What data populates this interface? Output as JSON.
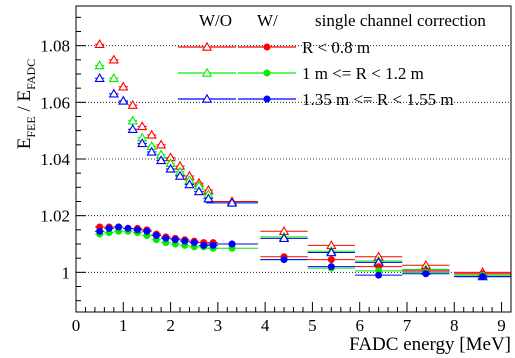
{
  "chart_data": {
    "type": "scatter",
    "xlabel": "FADC energy [MeV]",
    "ylabel_main": "E",
    "ylabel_sub1": "FEE",
    "ylabel_sep": " / E",
    "ylabel_sub2": "FADC",
    "xlim": [
      0,
      9.2
    ],
    "ylim": [
      0.986,
      1.094
    ],
    "xticks": [
      "0",
      "1",
      "2",
      "3",
      "4",
      "5",
      "6",
      "7",
      "8",
      "9"
    ],
    "yticks": [
      "1",
      "1.02",
      "1.04",
      "1.06",
      "1.08"
    ],
    "grid": "dotted horizontal",
    "legend": {
      "placement": "top-right",
      "header_wo": "W/O",
      "header_w": "W/",
      "header_note": "single channel correction",
      "rows": [
        {
          "label": "R < 0.8 m",
          "color": "#ff0000"
        },
        {
          "label": "1 m <= R < 1.2 m",
          "color": "#00ee00"
        },
        {
          "label": "1.35 m <= R < 1.55 m",
          "color": "#0000ff"
        }
      ]
    },
    "series": [
      {
        "correction": "W/O",
        "color": "#ff0000",
        "marker": "open-triangle",
        "points": [
          [
            0.5,
            1.0805,
            0.1,
            0.0005
          ],
          [
            0.8,
            1.075,
            0.1,
            0.0005
          ],
          [
            1.0,
            1.0655,
            0.1,
            0.0005
          ],
          [
            1.2,
            1.059,
            0.1,
            0.0005
          ],
          [
            1.4,
            1.0515,
            0.1,
            0.0005
          ],
          [
            1.6,
            1.0485,
            0.1,
            0.0005
          ],
          [
            1.8,
            1.045,
            0.1,
            0.0005
          ],
          [
            2.0,
            1.0405,
            0.1,
            0.0005
          ],
          [
            2.2,
            1.0375,
            0.1,
            0.0005
          ],
          [
            2.4,
            1.034,
            0.1,
            0.0005
          ],
          [
            2.6,
            1.0315,
            0.1,
            0.0005
          ],
          [
            2.8,
            1.029,
            0.1,
            0.0005
          ],
          [
            3.3,
            1.025,
            0.55,
            0.0008
          ],
          [
            4.4,
            1.0145,
            0.5,
            0.001
          ],
          [
            5.4,
            1.0095,
            0.5,
            0.001
          ],
          [
            6.4,
            1.0055,
            0.5,
            0.001
          ],
          [
            7.4,
            1.0025,
            0.5,
            0.001
          ],
          [
            8.6,
            1.0,
            0.6,
            0.0008
          ]
        ]
      },
      {
        "correction": "W/O",
        "color": "#00ee00",
        "marker": "open-triangle",
        "points": [
          [
            0.5,
            1.073,
            0.1,
            0.0005
          ],
          [
            0.8,
            1.0685,
            0.1,
            0.0005
          ],
          [
            1.0,
            1.0605,
            0.1,
            0.0005
          ],
          [
            1.2,
            1.0535,
            0.1,
            0.0005
          ],
          [
            1.4,
            1.0475,
            0.1,
            0.0005
          ],
          [
            1.6,
            1.0445,
            0.1,
            0.0005
          ],
          [
            1.8,
            1.0415,
            0.1,
            0.0005
          ],
          [
            2.0,
            1.0385,
            0.1,
            0.0005
          ],
          [
            2.2,
            1.0355,
            0.1,
            0.0005
          ],
          [
            2.4,
            1.0325,
            0.1,
            0.0005
          ],
          [
            2.6,
            1.0305,
            0.1,
            0.0005
          ],
          [
            2.8,
            1.0275,
            0.1,
            0.0005
          ],
          [
            3.3,
            1.0245,
            0.55,
            0.0008
          ],
          [
            4.4,
            1.0125,
            0.5,
            0.001
          ],
          [
            5.4,
            1.0075,
            0.5,
            0.001
          ],
          [
            6.4,
            1.004,
            0.5,
            0.001
          ],
          [
            7.4,
            1.001,
            0.5,
            0.001
          ],
          [
            8.6,
            0.999,
            0.6,
            0.0008
          ]
        ]
      },
      {
        "correction": "W/O",
        "color": "#0000ff",
        "marker": "open-triangle",
        "points": [
          [
            0.5,
            1.0685,
            0.1,
            0.0005
          ],
          [
            0.8,
            1.063,
            0.1,
            0.0005
          ],
          [
            1.0,
            1.0605,
            0.1,
            0.0005
          ],
          [
            1.2,
            1.0505,
            0.1,
            0.0005
          ],
          [
            1.4,
            1.0455,
            0.1,
            0.0005
          ],
          [
            1.6,
            1.0425,
            0.1,
            0.0005
          ],
          [
            1.8,
            1.0395,
            0.1,
            0.0005
          ],
          [
            2.0,
            1.0365,
            0.1,
            0.0005
          ],
          [
            2.2,
            1.034,
            0.1,
            0.0005
          ],
          [
            2.4,
            1.031,
            0.1,
            0.0005
          ],
          [
            2.6,
            1.0285,
            0.1,
            0.0005
          ],
          [
            2.8,
            1.026,
            0.1,
            0.0005
          ],
          [
            3.3,
            1.0245,
            0.55,
            0.0008
          ],
          [
            4.4,
            1.012,
            0.5,
            0.001
          ],
          [
            5.4,
            1.007,
            0.5,
            0.001
          ],
          [
            6.4,
            1.0035,
            0.5,
            0.001
          ],
          [
            7.4,
            1.0005,
            0.5,
            0.001
          ],
          [
            8.6,
            0.9985,
            0.6,
            0.0008
          ]
        ]
      },
      {
        "correction": "W/",
        "color": "#ff0000",
        "marker": "filled-circle",
        "points": [
          [
            0.5,
            1.016,
            0.1,
            0.0004
          ],
          [
            0.7,
            1.016,
            0.1,
            0.0004
          ],
          [
            0.9,
            1.016,
            0.1,
            0.0004
          ],
          [
            1.1,
            1.0155,
            0.1,
            0.0004
          ],
          [
            1.3,
            1.0155,
            0.1,
            0.0004
          ],
          [
            1.5,
            1.015,
            0.1,
            0.0004
          ],
          [
            1.7,
            1.0135,
            0.1,
            0.0004
          ],
          [
            1.9,
            1.0125,
            0.1,
            0.0004
          ],
          [
            2.1,
            1.012,
            0.1,
            0.0004
          ],
          [
            2.3,
            1.0115,
            0.1,
            0.0004
          ],
          [
            2.5,
            1.011,
            0.1,
            0.0004
          ],
          [
            2.7,
            1.0105,
            0.1,
            0.0004
          ],
          [
            2.9,
            1.0105,
            0.1,
            0.0004
          ],
          [
            3.3,
            1.01,
            0.55,
            0.0006
          ],
          [
            4.4,
            1.0055,
            0.5,
            0.0008
          ],
          [
            5.4,
            1.0045,
            0.5,
            0.0008
          ],
          [
            6.4,
            1.002,
            0.5,
            0.0008
          ],
          [
            7.4,
            1.0005,
            0.5,
            0.0008
          ],
          [
            8.6,
            0.9995,
            0.6,
            0.0006
          ]
        ]
      },
      {
        "correction": "W/",
        "color": "#00ee00",
        "marker": "filled-circle",
        "points": [
          [
            0.5,
            1.0135,
            0.1,
            0.0004
          ],
          [
            0.7,
            1.014,
            0.1,
            0.0004
          ],
          [
            0.9,
            1.0145,
            0.1,
            0.0004
          ],
          [
            1.1,
            1.0145,
            0.1,
            0.0004
          ],
          [
            1.3,
            1.014,
            0.1,
            0.0004
          ],
          [
            1.5,
            1.013,
            0.1,
            0.0004
          ],
          [
            1.7,
            1.0115,
            0.1,
            0.0004
          ],
          [
            1.9,
            1.0105,
            0.1,
            0.0004
          ],
          [
            2.1,
            1.01,
            0.1,
            0.0004
          ],
          [
            2.3,
            1.0095,
            0.1,
            0.0004
          ],
          [
            2.5,
            1.009,
            0.1,
            0.0004
          ],
          [
            2.7,
            1.009,
            0.1,
            0.0004
          ],
          [
            2.9,
            1.0085,
            0.1,
            0.0004
          ],
          [
            3.3,
            1.0085,
            0.55,
            0.0006
          ],
          [
            4.4,
            1.0045,
            0.5,
            0.0008
          ],
          [
            5.4,
            1.0015,
            0.5,
            0.0008
          ],
          [
            6.4,
            1.0005,
            0.5,
            0.0008
          ],
          [
            7.4,
            1.0,
            0.5,
            0.0008
          ],
          [
            8.6,
            0.999,
            0.6,
            0.0006
          ]
        ]
      },
      {
        "correction": "W/",
        "color": "#0000ff",
        "marker": "filled-circle",
        "points": [
          [
            0.5,
            1.0145,
            0.1,
            0.0004
          ],
          [
            0.7,
            1.0155,
            0.1,
            0.0004
          ],
          [
            0.9,
            1.016,
            0.1,
            0.0004
          ],
          [
            1.1,
            1.0155,
            0.1,
            0.0004
          ],
          [
            1.3,
            1.015,
            0.1,
            0.0004
          ],
          [
            1.5,
            1.0145,
            0.1,
            0.0004
          ],
          [
            1.7,
            1.013,
            0.1,
            0.0004
          ],
          [
            1.9,
            1.012,
            0.1,
            0.0004
          ],
          [
            2.1,
            1.0115,
            0.1,
            0.0004
          ],
          [
            2.3,
            1.011,
            0.1,
            0.0004
          ],
          [
            2.5,
            1.0105,
            0.1,
            0.0004
          ],
          [
            2.7,
            1.0095,
            0.1,
            0.0004
          ],
          [
            2.9,
            1.0095,
            0.1,
            0.0004
          ],
          [
            3.3,
            1.01,
            0.55,
            0.0006
          ],
          [
            4.4,
            1.0045,
            0.5,
            0.0008
          ],
          [
            5.4,
            1.002,
            0.5,
            0.0008
          ],
          [
            6.4,
            0.999,
            0.5,
            0.0008
          ],
          [
            7.4,
            0.9995,
            0.5,
            0.0008
          ],
          [
            8.6,
            0.9985,
            0.6,
            0.0006
          ]
        ]
      }
    ]
  }
}
